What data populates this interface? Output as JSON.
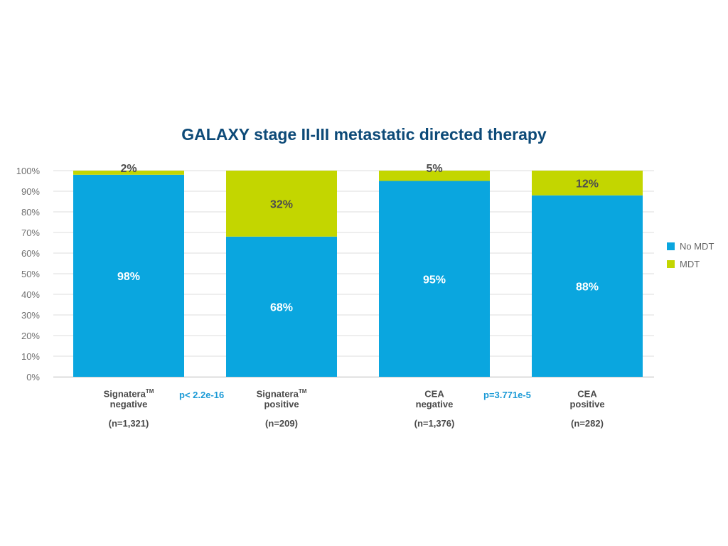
{
  "chart_data": {
    "type": "bar",
    "stacked": true,
    "title": "GALAXY stage II-III metastatic directed therapy",
    "ylim": [
      0,
      100
    ],
    "y_ticks": [
      "0%",
      "10%",
      "20%",
      "30%",
      "40%",
      "50%",
      "60%",
      "70%",
      "80%",
      "90%",
      "100%"
    ],
    "grid": true,
    "legend_position": "right",
    "categories": [
      {
        "line1": "Signatera",
        "tm": "TM",
        "line2": "negative",
        "n": "(n=1,321)"
      },
      {
        "line1": "Signatera",
        "tm": "TM",
        "line2": "positive",
        "n": "(n=209)"
      },
      {
        "line1": "CEA",
        "tm": "",
        "line2": "negative",
        "n": "(n=1,376)"
      },
      {
        "line1": "CEA",
        "tm": "",
        "line2": "positive",
        "n": "(n=282)"
      }
    ],
    "series": [
      {
        "name": "No MDT",
        "color": "#0aa6df",
        "values": [
          98,
          68,
          95,
          88
        ],
        "labels": [
          "98%",
          "68%",
          "95%",
          "88%"
        ],
        "label_color": "#ffffff"
      },
      {
        "name": "MDT",
        "color": "#c3d600",
        "values": [
          2,
          32,
          5,
          12
        ],
        "labels": [
          "2%",
          "32%",
          "5%",
          "12%"
        ],
        "label_color": "#4d4d4d"
      }
    ],
    "annotations": [
      "p< 2.2e-16",
      "p=3.771e-5"
    ]
  }
}
